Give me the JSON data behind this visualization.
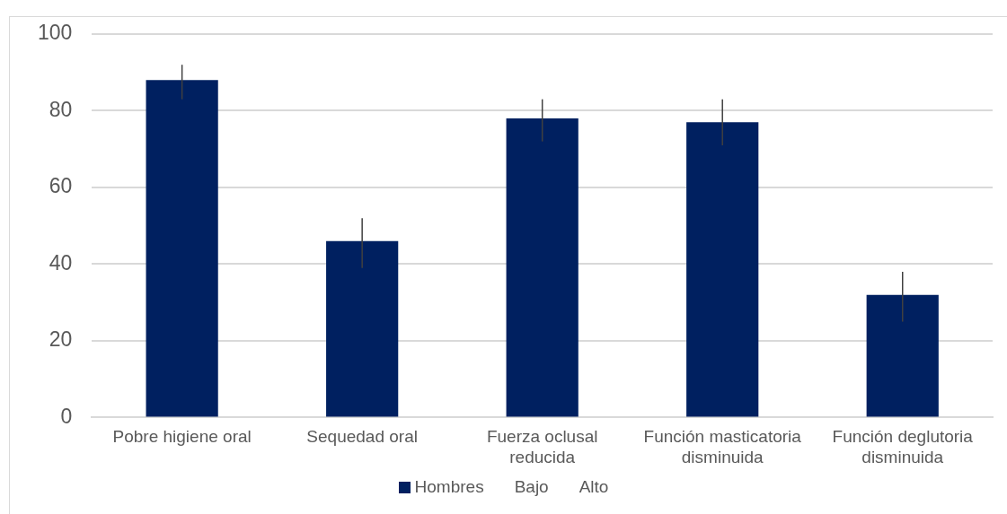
{
  "chart_data": {
    "type": "bar",
    "categories": [
      "Pobre higiene oral",
      "Sequedad oral",
      "Fuerza oclusal reducida",
      "Función masticatoria disminuida",
      "Función deglutoria disminuida"
    ],
    "series": [
      {
        "name": "Hombres",
        "color": "#002060",
        "values": [
          88,
          46,
          78,
          77,
          32
        ],
        "errors": [
          [
            83,
            92
          ],
          [
            39,
            52
          ],
          [
            72,
            83
          ],
          [
            71,
            83
          ],
          [
            25,
            38
          ]
        ]
      }
    ],
    "ylim": [
      0,
      100
    ],
    "yticks": [
      0,
      20,
      40,
      60,
      80,
      100
    ],
    "grid": "y",
    "legend": "bottom",
    "annotations": [
      "Bajo",
      "Alto"
    ]
  }
}
